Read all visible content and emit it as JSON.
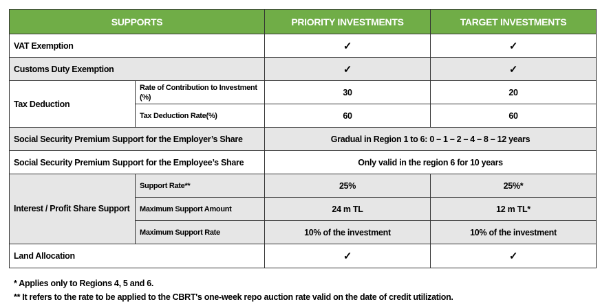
{
  "header": {
    "supports": "SUPPORTS",
    "priority": "PRIORITY INVESTMENTS",
    "target": "TARGET INVESTMENTS"
  },
  "check": "✓",
  "rows": {
    "vat": "VAT Exemption",
    "customs": "Customs Duty Exemption",
    "tax": {
      "label": "Tax Deduction",
      "contribution": {
        "label": "Rate of Contribution to Investment (%)",
        "priority": "30",
        "target": "20"
      },
      "deduction": {
        "label": "Tax Deduction Rate(%)",
        "priority": "60",
        "target": "60"
      }
    },
    "ss_employer": {
      "label": "Social Security Premium Support for the Employer’s Share",
      "value": "Gradual in Region 1 to 6: 0 – 1 – 2 – 4 – 8 – 12 years"
    },
    "ss_employee": {
      "label": "Social Security Premium Support for the Employee’s Share",
      "value": "Only valid in the region 6 for 10 years"
    },
    "interest": {
      "label": "Interest / Profit Share Support",
      "rate": {
        "label": "Support Rate**",
        "priority": "25%",
        "target": "25%*"
      },
      "amount": {
        "label": "Maximum Support Amount",
        "priority": "24 m TL",
        "target": "12 m TL*"
      },
      "max_rate": {
        "label": "Maximum Support Rate",
        "priority": "10% of the investment",
        "target": "10% of the investment"
      }
    },
    "land": "Land Allocation"
  },
  "footnotes": [
    "* Applies only to Regions 4, 5 and 6.",
    "** It refers to the rate to be applied to the CBRT's one-week repo auction rate valid on the date of credit utilization."
  ],
  "colors": {
    "header": "#70ad47",
    "shaded_row": "#e6e6e6"
  }
}
